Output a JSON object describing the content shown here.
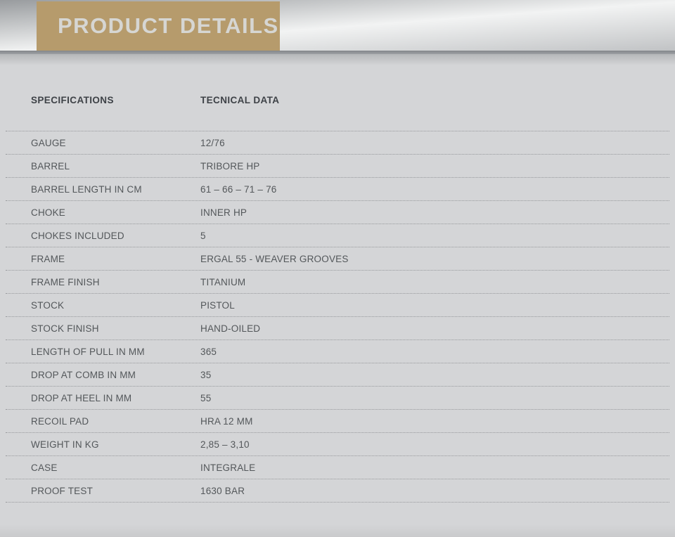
{
  "header": {
    "title": "PRODUCT DETAILS"
  },
  "table": {
    "columns": [
      "SPECIFICATIONS",
      "TECNICAL DATA"
    ],
    "rows": [
      {
        "label": "GAUGE",
        "value": "12/76"
      },
      {
        "label": "BARREL",
        "value": "TRIBORE HP"
      },
      {
        "label": "BARREL LENGTH IN CM",
        "value": "61 – 66 – 71 – 76"
      },
      {
        "label": "CHOKE",
        "value": "INNER HP"
      },
      {
        "label": "CHOKES INCLUDED",
        "value": "5"
      },
      {
        "label": "FRAME",
        "value": "ERGAL 55 - WEAVER GROOVES"
      },
      {
        "label": "FRAME FINISH",
        "value": "TITANIUM"
      },
      {
        "label": "STOCK",
        "value": "PISTOL"
      },
      {
        "label": "STOCK FINISH",
        "value": "HAND-OILED"
      },
      {
        "label": "LENGTH OF PULL IN MM",
        "value": "365"
      },
      {
        "label": "DROP AT COMB IN MM",
        "value": "35"
      },
      {
        "label": "DROP AT HEEL IN MM",
        "value": "55"
      },
      {
        "label": "RECOIL PAD",
        "value": "HRA 12 MM"
      },
      {
        "label": "WEIGHT IN KG",
        "value": "2,85 – 3,10"
      },
      {
        "label": "CASE",
        "value": "INTEGRALE"
      },
      {
        "label": "PROOF TEST",
        "value": "1630 BAR"
      }
    ]
  },
  "colors": {
    "accent_gold": "#b69b6c",
    "title_text": "#d6d6d3",
    "heading_text": "#3e4247",
    "row_text": "#53575a",
    "dotted_line": "#97999c",
    "page_background": "#d4d5d7"
  }
}
